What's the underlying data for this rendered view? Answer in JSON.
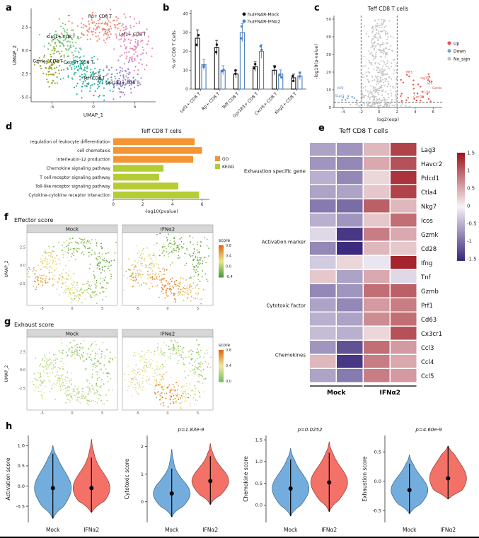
{
  "labels": {
    "a": "a",
    "b": "b",
    "c": "c",
    "d": "d",
    "e": "e",
    "f": "f",
    "g": "g",
    "h": "h"
  },
  "chart_data": [
    {
      "id": "umap_clusters",
      "type": "scatter",
      "xlabel": "UMAP_1",
      "ylabel": "UMAP_2",
      "xlim": [
        -7.5,
        7.5
      ],
      "ylim": [
        -5.5,
        4.5
      ],
      "xticks": [
        -5,
        0,
        5
      ],
      "yticks": [
        2.5,
        0.0,
        -2.5,
        -5.0
      ],
      "clusters": [
        {
          "name": "Rp+ CD8 T",
          "color": "#f08a7e",
          "cx": 0.8,
          "cy": 2.5,
          "sx": 1.7,
          "sy": 0.8,
          "n": 120,
          "lx": 0.8,
          "ly": 3.5
        },
        {
          "name": "Lef1+ CD8 T",
          "color": "#e58bb4",
          "cx": 4.9,
          "cy": 0.6,
          "sx": 1.0,
          "sy": 1.4,
          "n": 110,
          "lx": 4.7,
          "ly": 1.6
        },
        {
          "name": "Klrg1+ CD8 T",
          "color": "#7cc87c",
          "cx": -3.6,
          "cy": 0.9,
          "sx": 1.1,
          "sy": 0.8,
          "n": 90,
          "lx": -3.9,
          "ly": 1.3
        },
        {
          "name": "Gzmk+ CD8 T",
          "color": "#99a832",
          "cx": -5.3,
          "cy": -1.6,
          "sx": 0.9,
          "sy": 0.9,
          "n": 80,
          "lx": -5.5,
          "ly": -1.3
        },
        {
          "name": "Cxcr6+ CD8 T",
          "color": "#3fbf9f",
          "cx": -1.6,
          "cy": -1.7,
          "sx": 1.0,
          "sy": 0.8,
          "n": 80,
          "lx": -1.8,
          "ly": -1.4
        },
        {
          "name": "Teff CD8 T",
          "color": "#2aa7a0",
          "cx": 0.3,
          "cy": -3.3,
          "sx": 1.2,
          "sy": 0.8,
          "n": 90,
          "lx": 0.1,
          "ly": -3.1
        },
        {
          "name": "Gpr183+ CD8 T",
          "color": "#9d8ac7",
          "cx": 3.5,
          "cy": -3.4,
          "sx": 1.2,
          "sy": 0.9,
          "n": 90,
          "lx": 3.5,
          "ly": -3.6
        }
      ]
    },
    {
      "id": "bar_cd8",
      "type": "bar",
      "ylabel": "% of CD8 T Cells",
      "ylim": [
        0,
        42
      ],
      "yticks": [
        0,
        10,
        20,
        30,
        40
      ],
      "categories": [
        "Lef1+ CD8 T",
        "Rp+ CD8 T",
        "Teff CD8 T",
        "Gpr183+ CD8 T",
        "Cxcr6+ CD8 T",
        "Klrg1+ CD8 T"
      ],
      "series": [
        {
          "name": "huIFNAR-Mock",
          "color": "#111111",
          "values": [
            27,
            22,
            8,
            12,
            10,
            6
          ]
        },
        {
          "name": "huIFNAR-IFNα2",
          "color": "#4a7fc1",
          "values": [
            13,
            10,
            30,
            20,
            8,
            7
          ]
        }
      ]
    },
    {
      "id": "volcano",
      "type": "scatter",
      "title": "Teff CD8 T cells",
      "xlabel": "log2(exp)",
      "ylabel": "-log10(p-value)",
      "xlim": [
        -5,
        7
      ],
      "ylim": [
        0,
        52
      ],
      "yticks": [
        0,
        10,
        20,
        30,
        40,
        50
      ],
      "xticks": [
        -4,
        -2,
        0,
        2,
        4,
        6
      ],
      "thresholds": {
        "x": [
          -2,
          2
        ],
        "y": 3
      },
      "legend": [
        {
          "label": "Up",
          "color": "#e8554e"
        },
        {
          "label": "Down",
          "color": "#6fa8d6"
        },
        {
          "label": "No_sign",
          "color": "#c3c3c3"
        }
      ],
      "point_labels": [
        {
          "t": "Ifit3",
          "x": 3.0,
          "y": 19.5,
          "c": "#d43d35"
        },
        {
          "t": "Isg15",
          "x": 4.6,
          "y": 16,
          "c": "#d43d35"
        },
        {
          "t": "Irf7",
          "x": 5.3,
          "y": 13,
          "c": "#d43d35"
        },
        {
          "t": "Gzmb",
          "x": 5.9,
          "y": 10.5,
          "c": "#d43d35"
        },
        {
          "t": "Ccl4",
          "x": 4.9,
          "y": 8,
          "c": "#d43d35"
        },
        {
          "t": "Cxcl10",
          "x": 3.8,
          "y": 5.5,
          "c": "#d43d35"
        },
        {
          "t": "Klf2",
          "x": -4.6,
          "y": 10.5,
          "c": "#4a86c6"
        },
        {
          "t": "S1pr1",
          "x": -4.9,
          "y": 6,
          "c": "#4a86c6"
        }
      ]
    },
    {
      "id": "pathways",
      "type": "bar",
      "orientation": "horizontal",
      "title": "Teff CD8 T cells",
      "xlabel": "-log10(pvalue)",
      "xlim": [
        0,
        6.5
      ],
      "xticks": [
        0,
        2,
        4,
        6
      ],
      "categories": [
        "regulation of leukocyte differentiation",
        "cell chemotaxis",
        "interleukin-12 production",
        "Chemokine signaling pathway",
        "T cell receptor signaling pathway",
        "Toll-like receptor signaling pathway",
        "Cytokine-cytokine receptor interaction"
      ],
      "values": [
        5.5,
        6.0,
        5.4,
        3.4,
        3.1,
        4.4,
        5.8
      ],
      "groups": [
        "GO",
        "GO",
        "GO",
        "KEGG",
        "KEGG",
        "KEGG",
        "KEGG"
      ],
      "legend": [
        {
          "label": "GO",
          "color": "#f59432"
        },
        {
          "label": "KEGG",
          "color": "#b5cc34"
        }
      ]
    },
    {
      "id": "heatmap",
      "type": "heatmap",
      "title": "Teff CD8 T cells",
      "col_groups": [
        {
          "label": "Mock",
          "span": [
            0,
            1
          ]
        },
        {
          "label": "IFNα2",
          "span": [
            2,
            3
          ]
        }
      ],
      "row_groups": [
        {
          "label": "Exhaustion specific gene",
          "rows": [
            "Lag3",
            "Havcr2",
            "Pdcd1",
            "Ctla4"
          ]
        },
        {
          "label": "Activation marker",
          "rows": [
            "Nkg7",
            "Icos",
            "Gzmk",
            "Cd28",
            "Ifng",
            "Tnf"
          ]
        },
        {
          "label": "Cytotoxic factor",
          "rows": [
            "Gzmb",
            "Prf1",
            "Cd63"
          ]
        },
        {
          "label": "Chemokines",
          "rows": [
            "Cx3cr1",
            "Ccl3",
            "Ccl4",
            "Ccl5"
          ]
        }
      ],
      "values": {
        "Lag3": [
          -0.6,
          -0.7,
          0.4,
          1.2
        ],
        "Havcr2": [
          -0.7,
          -0.8,
          0.5,
          1.1
        ],
        "Pdcd1": [
          -0.5,
          -0.8,
          0.2,
          1.3
        ],
        "Ctla4": [
          -0.6,
          -0.6,
          0.3,
          1.2
        ],
        "Nkg7": [
          -0.9,
          -1.0,
          1.0,
          0.4
        ],
        "Icos": [
          -0.5,
          -0.7,
          0.3,
          0.9
        ],
        "Gzmk": [
          -0.2,
          -1.4,
          0.8,
          0.5
        ],
        "Cd28": [
          -0.8,
          -1.5,
          0.4,
          0.3
        ],
        "Ifng": [
          -0.3,
          0.2,
          -0.1,
          1.4
        ],
        "Tnf": [
          0.3,
          -0.6,
          0.5,
          -0.2
        ],
        "Gzmb": [
          -0.8,
          -0.7,
          0.9,
          1.0
        ],
        "Prf1": [
          -0.6,
          -0.8,
          0.6,
          0.8
        ],
        "Cd63": [
          -0.5,
          -0.6,
          0.7,
          0.9
        ],
        "Cx3cr1": [
          -0.4,
          -0.5,
          0.2,
          1.1
        ],
        "Ccl3": [
          -0.7,
          -1.2,
          0.9,
          0.6
        ],
        "Ccl4": [
          0.4,
          -1.4,
          0.8,
          0.5
        ],
        "Ccl5": [
          -0.6,
          -0.9,
          0.8,
          0.6
        ]
      },
      "scale": {
        "min": -1.5,
        "max": 1.5,
        "ticks": [
          1.5,
          1,
          0.5,
          0,
          -0.5,
          -1,
          -1.5
        ],
        "low": "#3b2a7d",
        "mid": "#f7f3f7",
        "high": "#9e161f"
      }
    },
    {
      "id": "effector",
      "type": "scatter",
      "title": "Effector score",
      "facets": [
        "Mock",
        "IFNα2"
      ],
      "ylabel": "UMAP_2",
      "legend_title": "score",
      "legend_ticks": [
        0.8,
        0.4,
        0.0,
        -0.4
      ],
      "score_range": [
        -0.5,
        0.9
      ],
      "facet_scores": [
        [
          -0.2,
          -0.3,
          0.25,
          0.6,
          0.35,
          0.15,
          -0.1
        ],
        [
          -0.25,
          -0.3,
          0.3,
          0.5,
          0.55,
          0.8,
          0.45
        ]
      ],
      "colors": {
        "low": "#4d9a3a",
        "mid": "#e8e88a",
        "high": "#e06a10"
      }
    },
    {
      "id": "exhaust",
      "type": "scatter",
      "title": "Exhaust score",
      "facets": [
        "Mock",
        "IFNα2"
      ],
      "ylabel": "UMAP_2",
      "legend_title": "score",
      "legend_ticks": [
        0.8,
        0.4,
        0.0
      ],
      "score_range": [
        -0.3,
        0.9
      ],
      "facet_scores": [
        [
          -0.1,
          -0.15,
          0.05,
          0.15,
          0.15,
          0.1,
          0.0
        ],
        [
          -0.05,
          -0.1,
          0.2,
          0.3,
          0.45,
          0.8,
          0.3
        ]
      ],
      "colors": {
        "low": "#79c060",
        "mid": "#efe9a0",
        "high": "#e06a10"
      }
    },
    {
      "id": "violins",
      "type": "violin",
      "subplots": [
        {
          "ylabel": "Activation score",
          "p": null,
          "ylim": [
            -0.9,
            1.25
          ],
          "yticks": [
            {
              "v": 1.0,
              "l": "1.0"
            },
            {
              "v": 0.5,
              "l": "0.5"
            },
            {
              "v": 0.0,
              "l": "0.0"
            },
            {
              "v": -0.5,
              "l": "-0.5"
            }
          ],
          "groups": [
            {
              "name": "Mock",
              "color": "#6ca9dc",
              "median": -0.05,
              "q1": -0.3,
              "q3": 0.25,
              "min": -0.8,
              "max": 1.0
            },
            {
              "name": "IFNα2",
              "color": "#f2695f",
              "median": -0.05,
              "q1": -0.3,
              "q3": 0.2,
              "min": -0.65,
              "max": 1.15
            }
          ]
        },
        {
          "ylabel": "Cytotoxic score",
          "p": "p=1.83e-9",
          "ylim": [
            -0.75,
            2.4
          ],
          "yticks": [
            {
              "v": 2,
              "l": "2"
            },
            {
              "v": 1,
              "l": "1"
            },
            {
              "v": 0,
              "l": "0"
            }
          ],
          "groups": [
            {
              "name": "Mock",
              "color": "#6ca9dc",
              "median": 0.3,
              "q1": 0.0,
              "q3": 0.6,
              "min": -0.55,
              "max": 1.9
            },
            {
              "name": "IFNα2",
              "color": "#f2695f",
              "median": 0.75,
              "q1": 0.45,
              "q3": 1.05,
              "min": -0.1,
              "max": 2.1
            }
          ]
        },
        {
          "ylabel": "Chemokine score",
          "p": "p=0.0252",
          "ylim": [
            -0.4,
            1.6
          ],
          "yticks": [
            {
              "v": 1.5,
              "l": "1.5"
            },
            {
              "v": 1.0,
              "l": "1.0"
            },
            {
              "v": 0.5,
              "l": "0.5"
            },
            {
              "v": 0.0,
              "l": "0.0"
            }
          ],
          "groups": [
            {
              "name": "Mock",
              "color": "#6ca9dc",
              "median": 0.38,
              "q1": 0.15,
              "q3": 0.6,
              "min": -0.25,
              "max": 1.3
            },
            {
              "name": "IFNα2",
              "color": "#f2695f",
              "median": 0.52,
              "q1": 0.3,
              "q3": 0.75,
              "min": -0.15,
              "max": 1.45
            }
          ]
        },
        {
          "ylabel": "Exhaustion score",
          "p": "p=4.60e-9",
          "ylim": [
            -0.7,
            0.78
          ],
          "yticks": [
            {
              "v": 0.5,
              "l": "0.5"
            },
            {
              "v": 0.0,
              "l": "0.0"
            },
            {
              "v": -0.5,
              "l": "-0.5"
            }
          ],
          "groups": [
            {
              "name": "Mock",
              "color": "#6ca9dc",
              "median": -0.15,
              "q1": -0.3,
              "q3": 0.0,
              "min": -0.55,
              "max": 0.45
            },
            {
              "name": "IFNα2",
              "color": "#f2695f",
              "median": 0.05,
              "q1": -0.1,
              "q3": 0.25,
              "min": -0.3,
              "max": 0.6
            }
          ]
        }
      ]
    }
  ]
}
